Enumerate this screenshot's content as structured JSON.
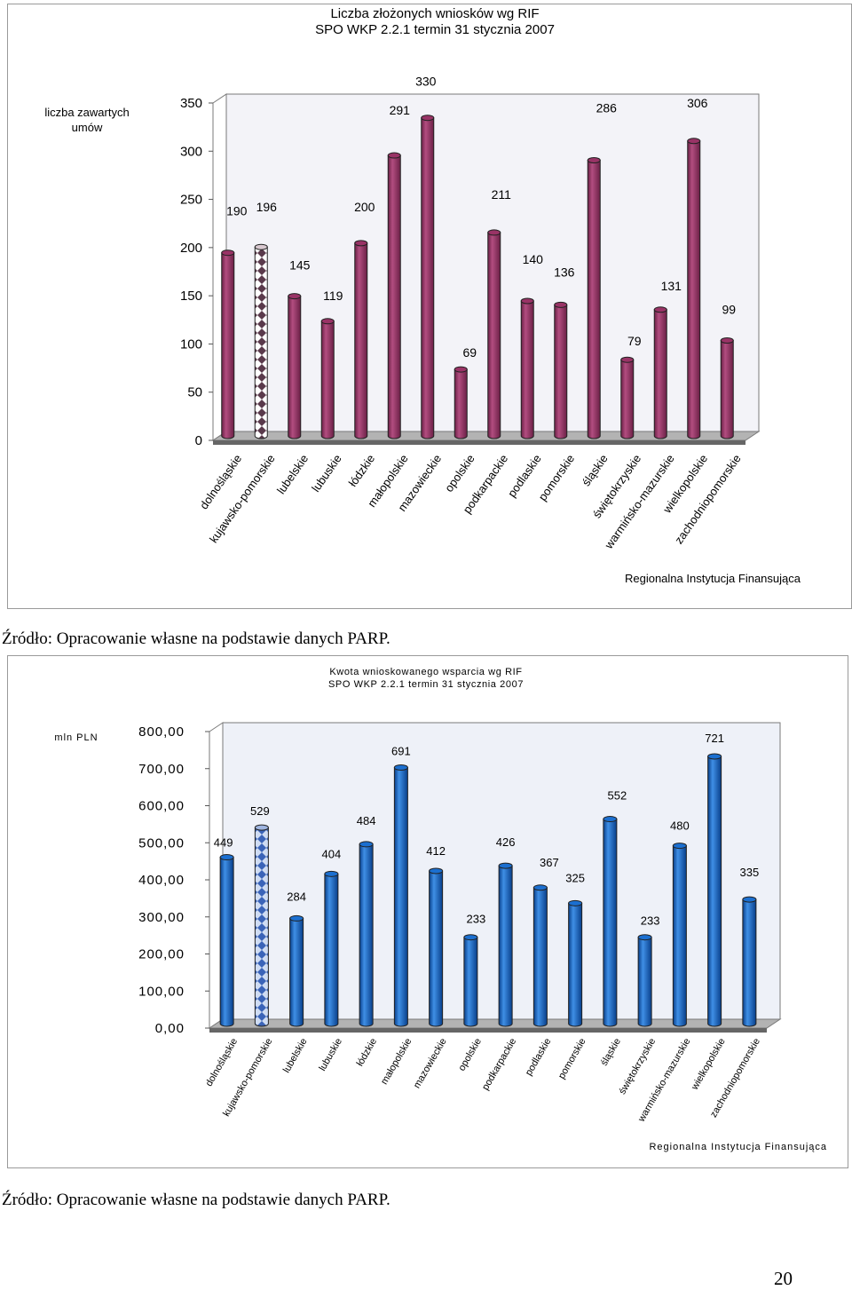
{
  "page_number": "20",
  "colors": {
    "bar1": "#993366",
    "bar2": "#0066cc",
    "highlight1": "#ffffff",
    "highlight2": "#6688cc",
    "back_wall": "#eef1f8"
  },
  "chart_data": [
    {
      "type": "bar",
      "title": "Liczba złożonych wniosków wg RIF",
      "subtitle": "SPO WKP 2.2.1 termin 31 stycznia 2007",
      "ylabel": "liczba zawartych umów",
      "xlabel": "Regionalna Instytucja Finansująca",
      "ylim": [
        0,
        350
      ],
      "yticks": [
        "0",
        "50",
        "100",
        "150",
        "200",
        "250",
        "300",
        "350"
      ],
      "highlighted_category": "kujawsko-pomorskie",
      "categories": [
        "dolnośląskie",
        "kujawsko-pomorskie",
        "lubelskie",
        "lubuskie",
        "łódzkie",
        "małopolskie",
        "mazowieckie",
        "opolskie",
        "podkarpackie",
        "podlaskie",
        "pomorskie",
        "śląskie",
        "świętokrzyskie",
        "warmińsko-mazurskie",
        "wielkopolskie",
        "zachodniopomorskie"
      ],
      "values": [
        190,
        196,
        145,
        119,
        200,
        291,
        330,
        69,
        211,
        140,
        136,
        286,
        79,
        131,
        306,
        99
      ],
      "labels": [
        "190",
        "196",
        "145",
        "119",
        "200",
        "291",
        "330",
        "69",
        "211",
        "140",
        "136",
        "286",
        "79",
        "131",
        "306",
        "99"
      ],
      "source": "Źródło: Opracowanie własne na podstawie danych PARP."
    },
    {
      "type": "bar",
      "title": "Kwota wnioskowanego wsparcia wg RIF",
      "subtitle": "SPO WKP 2.2.1 termin 31 stycznia 2007",
      "ylabel": "mln PLN",
      "xlabel": "Regionalna Instytucja Finansująca",
      "ylim": [
        0,
        800
      ],
      "yticks": [
        "0,00",
        "100,00",
        "200,00",
        "300,00",
        "400,00",
        "500,00",
        "600,00",
        "700,00",
        "800,00"
      ],
      "highlighted_category": "kujawsko-pomorskie",
      "categories": [
        "dolnośląskie",
        "kujawsko-pomorskie",
        "lubelskie",
        "lubuskie",
        "łódzkie",
        "małopolskie",
        "mazowieckie",
        "opolskie",
        "podkarpackie",
        "podlaskie",
        "pomorskie",
        "śląskie",
        "świętokrzyskie",
        "warmińsko-mazurskie",
        "wielkopolskie",
        "zachodniopomorskie"
      ],
      "values": [
        449,
        529,
        284,
        404,
        484,
        691,
        412,
        233,
        426,
        367,
        325,
        552,
        233,
        480,
        721,
        335
      ],
      "labels": [
        "449",
        "529",
        "284",
        "404",
        "484",
        "691",
        "412",
        "233",
        "426",
        "367",
        "325",
        "552",
        "233",
        "480",
        "721",
        "335"
      ],
      "source": "Źródło: Opracowanie własne na podstawie danych PARP."
    }
  ]
}
